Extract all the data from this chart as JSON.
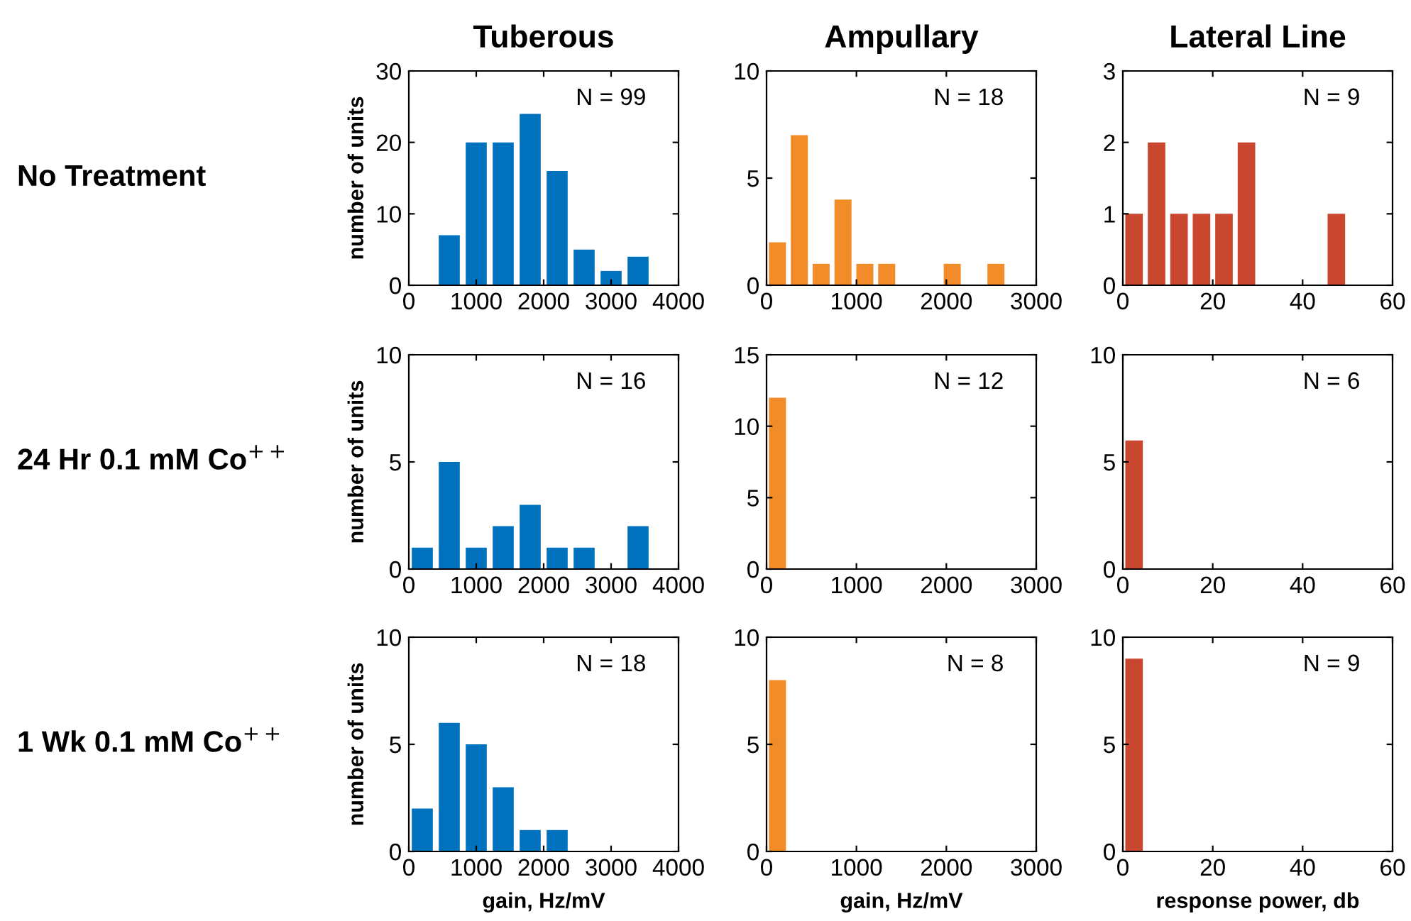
{
  "chart_data": [
    {
      "type": "histogram",
      "title": "Tuberous",
      "subtitle": "No Treatment",
      "ylabel": "number of units",
      "annotations": [
        "N = 99"
      ],
      "bins": [
        0,
        400,
        800,
        1200,
        1600,
        2000,
        2400,
        2800,
        3200,
        3600
      ],
      "values": [
        0,
        7,
        20,
        20,
        24,
        16,
        5,
        2,
        4
      ],
      "color": "#0072bd",
      "xlim": [
        0,
        4000
      ],
      "xticks": [
        0,
        1000,
        2000,
        3000,
        4000
      ],
      "ylim": [
        0,
        30
      ],
      "yticks": [
        0,
        10,
        20,
        30
      ],
      "grid": false
    },
    {
      "type": "histogram",
      "title": "Ampullary",
      "annotations": [
        "N = 18"
      ],
      "bins": [
        0,
        243,
        486,
        729,
        972,
        1215,
        1458,
        1701,
        1944,
        2187,
        2430,
        2673
      ],
      "values": [
        2,
        7,
        1,
        4,
        1,
        1,
        0,
        0,
        1,
        0,
        1
      ],
      "color": "#f28c28",
      "xlim": [
        0,
        3000
      ],
      "xticks": [
        0,
        1000,
        2000,
        3000
      ],
      "ylim": [
        0,
        10
      ],
      "yticks": [
        0,
        5,
        10
      ],
      "grid": false
    },
    {
      "type": "histogram",
      "title": "Lateral Line",
      "annotations": [
        "N = 9"
      ],
      "bins": [
        0,
        5,
        10,
        15,
        20,
        25,
        30,
        35,
        40,
        45,
        50
      ],
      "values": [
        1,
        2,
        1,
        1,
        1,
        2,
        0,
        0,
        0,
        1
      ],
      "color": "#c9472f",
      "xlim": [
        0,
        60
      ],
      "xticks": [
        0,
        20,
        40,
        60
      ],
      "ylim": [
        0,
        3
      ],
      "yticks": [
        0,
        1,
        2,
        3
      ],
      "grid": false
    },
    {
      "type": "histogram",
      "subtitle": "24 Hr 0.1 mM Co$^{++}$",
      "ylabel": "number of units",
      "annotations": [
        "N = 16"
      ],
      "bins": [
        0,
        400,
        800,
        1200,
        1600,
        2000,
        2400,
        2800,
        3200,
        3600
      ],
      "values": [
        1,
        5,
        1,
        2,
        3,
        1,
        1,
        0,
        2
      ],
      "color": "#0072bd",
      "xlim": [
        0,
        4000
      ],
      "xticks": [
        0,
        1000,
        2000,
        3000,
        4000
      ],
      "ylim": [
        0,
        10
      ],
      "yticks": [
        0,
        5,
        10
      ],
      "grid": false
    },
    {
      "type": "histogram",
      "annotations": [
        "N = 12"
      ],
      "bins": [
        0,
        243,
        486,
        729,
        972,
        1215,
        1458,
        1701,
        1944,
        2187,
        2430,
        2673
      ],
      "values": [
        12,
        0,
        0,
        0,
        0,
        0,
        0,
        0,
        0,
        0,
        0
      ],
      "color": "#f28c28",
      "xlim": [
        0,
        3000
      ],
      "xticks": [
        0,
        1000,
        2000,
        3000
      ],
      "ylim": [
        0,
        15
      ],
      "yticks": [
        0,
        5,
        10,
        15
      ],
      "grid": false
    },
    {
      "type": "histogram",
      "annotations": [
        "N = 6"
      ],
      "bins": [
        0,
        5,
        10,
        15,
        20,
        25,
        30,
        35,
        40,
        45,
        50
      ],
      "values": [
        6,
        0,
        0,
        0,
        0,
        0,
        0,
        0,
        0,
        0
      ],
      "color": "#c9472f",
      "xlim": [
        0,
        60
      ],
      "xticks": [
        0,
        20,
        40,
        60
      ],
      "ylim": [
        0,
        10
      ],
      "yticks": [
        0,
        5,
        10
      ],
      "grid": false
    },
    {
      "type": "histogram",
      "subtitle": "1 Wk 0.1 mM Co$^{++}$",
      "ylabel": "number of units",
      "xlabel": "gain, Hz/mV",
      "annotations": [
        "N = 18"
      ],
      "bins": [
        0,
        400,
        800,
        1200,
        1600,
        2000,
        2400,
        2800,
        3200,
        3600
      ],
      "values": [
        2,
        6,
        5,
        3,
        1,
        1,
        0,
        0,
        0
      ],
      "color": "#0072bd",
      "xlim": [
        0,
        4000
      ],
      "xticks": [
        0,
        1000,
        2000,
        3000,
        4000
      ],
      "ylim": [
        0,
        10
      ],
      "yticks": [
        0,
        5,
        10
      ],
      "grid": false
    },
    {
      "type": "histogram",
      "xlabel": "gain, Hz/mV",
      "annotations": [
        "N = 8"
      ],
      "bins": [
        0,
        243,
        486,
        729,
        972,
        1215,
        1458,
        1701,
        1944,
        2187,
        2430,
        2673
      ],
      "values": [
        8,
        0,
        0,
        0,
        0,
        0,
        0,
        0,
        0,
        0,
        0
      ],
      "color": "#f28c28",
      "xlim": [
        0,
        3000
      ],
      "xticks": [
        0,
        1000,
        2000,
        3000
      ],
      "ylim": [
        0,
        10
      ],
      "yticks": [
        0,
        5,
        10
      ],
      "grid": false
    },
    {
      "type": "histogram",
      "xlabel": "response power, db",
      "annotations": [
        "N = 9"
      ],
      "bins": [
        0,
        5,
        10,
        15,
        20,
        25,
        30,
        35,
        40,
        45,
        50
      ],
      "values": [
        9,
        0,
        0,
        0,
        0,
        0,
        0,
        0,
        0,
        0
      ],
      "color": "#c9472f",
      "xlim": [
        0,
        60
      ],
      "xticks": [
        0,
        20,
        40,
        60
      ],
      "ylim": [
        0,
        10
      ],
      "yticks": [
        0,
        5,
        10
      ],
      "grid": false
    }
  ]
}
